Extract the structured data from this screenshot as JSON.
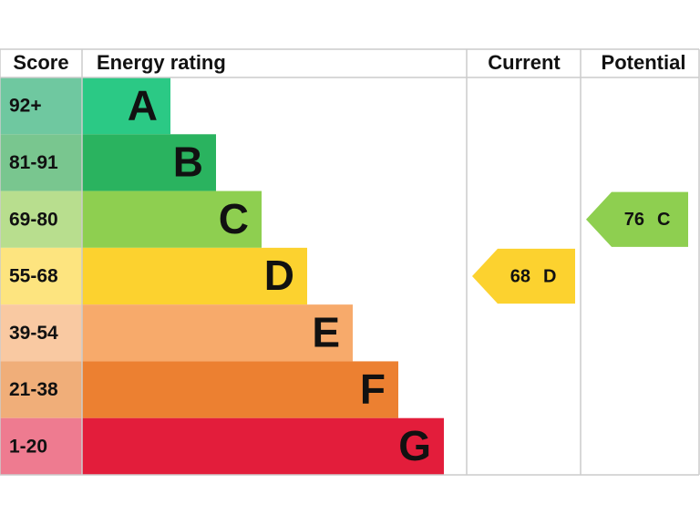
{
  "chart_data": {
    "type": "epc",
    "headers": [
      "Score",
      "Energy rating",
      "Current",
      "Potential"
    ],
    "bands": [
      {
        "score": "92+",
        "rating": "A",
        "color": "#2bc985",
        "score_color": "#6fc8a0"
      },
      {
        "score": "81-91",
        "rating": "B",
        "color": "#2ab35f",
        "score_color": "#79c68f"
      },
      {
        "score": "69-80",
        "rating": "C",
        "color": "#8ecf50",
        "score_color": "#b8de8e"
      },
      {
        "score": "55-68",
        "rating": "D",
        "color": "#fcd22f",
        "score_color": "#fde47f"
      },
      {
        "score": "39-54",
        "rating": "E",
        "color": "#f7aa6b",
        "score_color": "#f9c9a2"
      },
      {
        "score": "21-38",
        "rating": "F",
        "color": "#ec8031",
        "score_color": "#f0ae79"
      },
      {
        "score": "1-20",
        "rating": "G",
        "color": "#e31d3b",
        "score_color": "#ee7b90"
      }
    ],
    "current": {
      "value": 68,
      "rating": "D"
    },
    "potential": {
      "value": 76,
      "rating": "C"
    }
  }
}
